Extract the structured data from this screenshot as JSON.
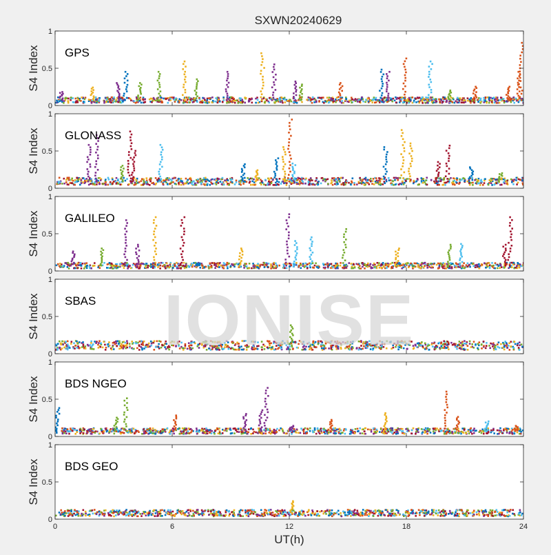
{
  "figure": {
    "title": "SXWN20240629",
    "watermark": "IONISE",
    "xlabel": "UT(h)",
    "ylabel": "S4 Index"
  },
  "chart_data": {
    "type": "scatter",
    "title": "SXWN20240629",
    "xlabel": "UT(h)",
    "xlim": [
      0,
      24
    ],
    "xticks": [
      0,
      6,
      12,
      18,
      24
    ],
    "ylim": [
      0,
      1
    ],
    "yticks": [
      0,
      0.5,
      1
    ],
    "grid": false,
    "panel_colors": [
      "#0072bd",
      "#d95319",
      "#edb120",
      "#7e2f8e",
      "#77ac30",
      "#4dbeee",
      "#a2142f"
    ],
    "panels": [
      {
        "label": "GPS",
        "ylabel": "S4 Index",
        "baseline": 0.07,
        "spikes": [
          {
            "x": 0.3,
            "peak": 0.18,
            "c": 3
          },
          {
            "x": 1.9,
            "peak": 0.24,
            "c": 2
          },
          {
            "x": 3.2,
            "peak": 0.3,
            "c": 3
          },
          {
            "x": 3.6,
            "peak": 0.45,
            "c": 0
          },
          {
            "x": 4.3,
            "peak": 0.3,
            "c": 4
          },
          {
            "x": 5.3,
            "peak": 0.45,
            "c": 4
          },
          {
            "x": 6.6,
            "peak": 0.59,
            "c": 2
          },
          {
            "x": 7.2,
            "peak": 0.35,
            "c": 4
          },
          {
            "x": 8.8,
            "peak": 0.45,
            "c": 3
          },
          {
            "x": 10.6,
            "peak": 0.7,
            "c": 2
          },
          {
            "x": 11.2,
            "peak": 0.55,
            "c": 3
          },
          {
            "x": 12.3,
            "peak": 0.32,
            "c": 3
          },
          {
            "x": 12.6,
            "peak": 0.28,
            "c": 4
          },
          {
            "x": 14.6,
            "peak": 0.3,
            "c": 1
          },
          {
            "x": 16.7,
            "peak": 0.48,
            "c": 0
          },
          {
            "x": 17.0,
            "peak": 0.45,
            "c": 3
          },
          {
            "x": 17.9,
            "peak": 0.63,
            "c": 1
          },
          {
            "x": 19.2,
            "peak": 0.59,
            "c": 5
          },
          {
            "x": 20.2,
            "peak": 0.2,
            "c": 4
          },
          {
            "x": 21.5,
            "peak": 0.25,
            "c": 1
          },
          {
            "x": 23.2,
            "peak": 0.25,
            "c": 1
          },
          {
            "x": 23.7,
            "peak": 0.45,
            "c": 1
          },
          {
            "x": 23.85,
            "peak": 0.84,
            "c": 1
          }
        ]
      },
      {
        "label": "GLONASS",
        "ylabel": "S4 Index",
        "baseline": 0.09,
        "spikes": [
          {
            "x": 1.7,
            "peak": 0.58,
            "c": 3
          },
          {
            "x": 2.1,
            "peak": 0.71,
            "c": 3
          },
          {
            "x": 3.4,
            "peak": 0.3,
            "c": 4
          },
          {
            "x": 3.8,
            "peak": 0.76,
            "c": 6
          },
          {
            "x": 4.0,
            "peak": 0.5,
            "c": 6
          },
          {
            "x": 5.4,
            "peak": 0.58,
            "c": 5
          },
          {
            "x": 9.6,
            "peak": 0.32,
            "c": 0
          },
          {
            "x": 10.3,
            "peak": 0.24,
            "c": 2
          },
          {
            "x": 11.3,
            "peak": 0.4,
            "c": 0
          },
          {
            "x": 11.7,
            "peak": 0.55,
            "c": 2
          },
          {
            "x": 12.0,
            "peak": 0.92,
            "c": 1
          },
          {
            "x": 12.2,
            "peak": 0.33,
            "c": 5
          },
          {
            "x": 16.9,
            "peak": 0.55,
            "c": 0
          },
          {
            "x": 17.8,
            "peak": 0.78,
            "c": 2
          },
          {
            "x": 18.2,
            "peak": 0.6,
            "c": 2
          },
          {
            "x": 19.6,
            "peak": 0.35,
            "c": 6
          },
          {
            "x": 20.1,
            "peak": 0.57,
            "c": 6
          },
          {
            "x": 21.3,
            "peak": 0.28,
            "c": 0
          },
          {
            "x": 22.8,
            "peak": 0.2,
            "c": 4
          }
        ]
      },
      {
        "label": "GALILEO",
        "ylabel": "S4 Index",
        "baseline": 0.07,
        "spikes": [
          {
            "x": 0.9,
            "peak": 0.26,
            "c": 3
          },
          {
            "x": 2.4,
            "peak": 0.3,
            "c": 4
          },
          {
            "x": 3.6,
            "peak": 0.68,
            "c": 3
          },
          {
            "x": 4.2,
            "peak": 0.35,
            "c": 3
          },
          {
            "x": 5.1,
            "peak": 0.72,
            "c": 2
          },
          {
            "x": 6.5,
            "peak": 0.72,
            "c": 6
          },
          {
            "x": 7.3,
            "peak": 0.1,
            "c": 0
          },
          {
            "x": 9.5,
            "peak": 0.3,
            "c": 2
          },
          {
            "x": 11.9,
            "peak": 0.76,
            "c": 3
          },
          {
            "x": 12.3,
            "peak": 0.4,
            "c": 5
          },
          {
            "x": 13.1,
            "peak": 0.45,
            "c": 5
          },
          {
            "x": 14.8,
            "peak": 0.56,
            "c": 4
          },
          {
            "x": 17.5,
            "peak": 0.3,
            "c": 2
          },
          {
            "x": 20.2,
            "peak": 0.35,
            "c": 4
          },
          {
            "x": 20.8,
            "peak": 0.36,
            "c": 5
          },
          {
            "x": 23.0,
            "peak": 0.35,
            "c": 6
          },
          {
            "x": 23.3,
            "peak": 0.72,
            "c": 6
          }
        ]
      },
      {
        "label": "SBAS",
        "ylabel": "S4 Index",
        "baseline": 0.11,
        "spikes": [
          {
            "x": 12.1,
            "peak": 0.38,
            "c": 4
          }
        ]
      },
      {
        "label": "BDS NGEO",
        "ylabel": "S4 Index",
        "baseline": 0.07,
        "spikes": [
          {
            "x": 0.1,
            "peak": 0.38,
            "c": 0
          },
          {
            "x": 3.1,
            "peak": 0.25,
            "c": 4
          },
          {
            "x": 3.6,
            "peak": 0.51,
            "c": 4
          },
          {
            "x": 6.1,
            "peak": 0.28,
            "c": 1
          },
          {
            "x": 9.7,
            "peak": 0.3,
            "c": 3
          },
          {
            "x": 10.5,
            "peak": 0.35,
            "c": 3
          },
          {
            "x": 10.8,
            "peak": 0.65,
            "c": 3
          },
          {
            "x": 12.1,
            "peak": 0.14,
            "c": 3
          },
          {
            "x": 14.1,
            "peak": 0.22,
            "c": 1
          },
          {
            "x": 16.9,
            "peak": 0.31,
            "c": 2
          },
          {
            "x": 20.0,
            "peak": 0.6,
            "c": 1
          },
          {
            "x": 20.6,
            "peak": 0.26,
            "c": 1
          },
          {
            "x": 22.1,
            "peak": 0.2,
            "c": 5
          },
          {
            "x": 23.6,
            "peak": 0.14,
            "c": 1
          }
        ]
      },
      {
        "label": "BDS GEO",
        "ylabel": "S4 Index",
        "baseline": 0.08,
        "spikes": [
          {
            "x": 12.1,
            "peak": 0.24,
            "c": 2
          }
        ]
      }
    ]
  }
}
